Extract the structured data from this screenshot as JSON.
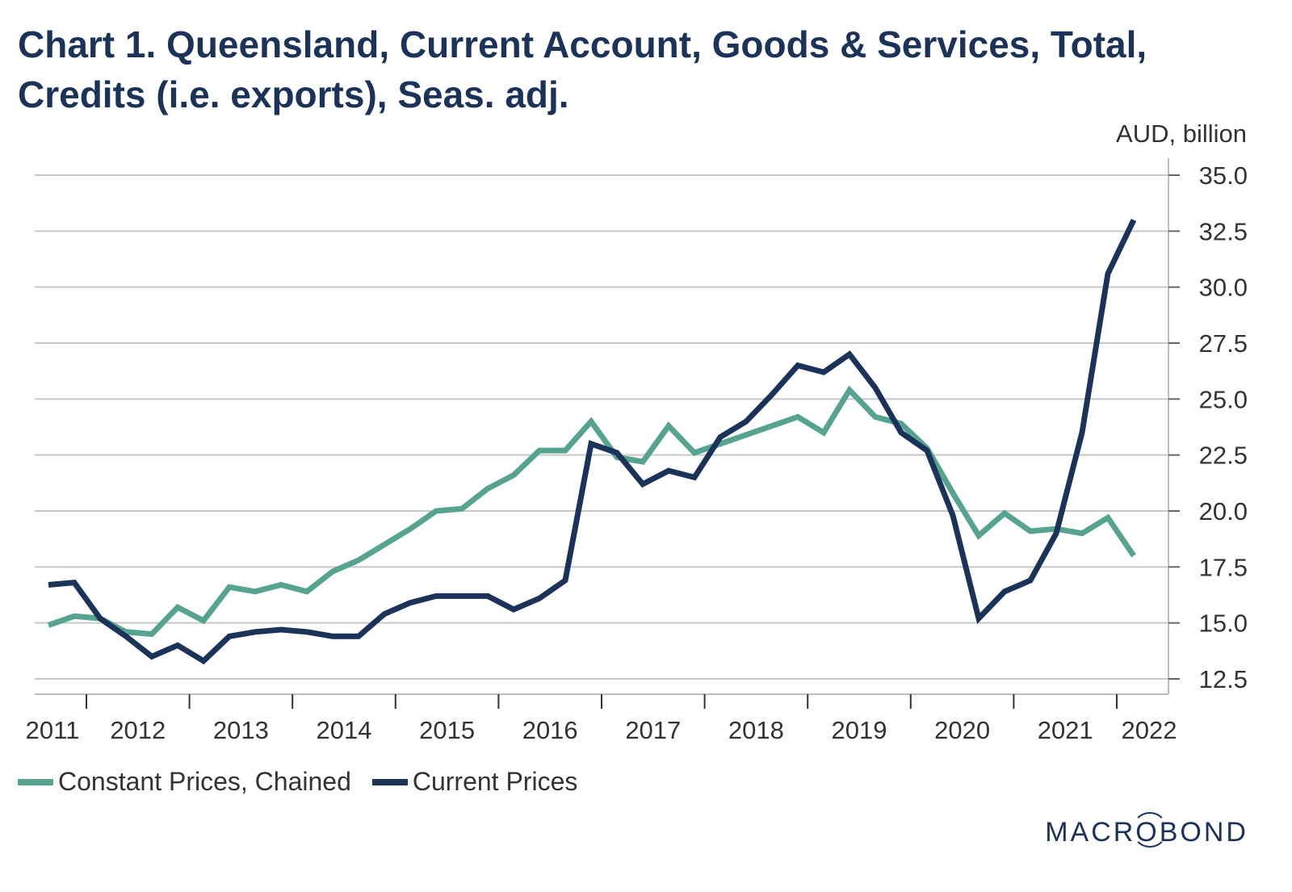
{
  "header": {
    "title": "Chart 1. Queensland, Current Account, Goods & Services, Total, Credits (i.e. exports), Seas. adj.",
    "unit_label": "AUD, billion"
  },
  "legend": {
    "items": [
      {
        "label": "Constant Prices, Chained",
        "color": "#56a38f"
      },
      {
        "label": "Current Prices",
        "color": "#1b3358"
      }
    ]
  },
  "branding": {
    "logo_text": "MACROBOND"
  },
  "chart_data": {
    "type": "line",
    "title": "Chart 1. Queensland, Current Account, Goods & Services, Total, Credits (i.e. exports), Seas. adj.",
    "xlabel": "",
    "ylabel": "AUD, billion",
    "frequency": "quarterly",
    "x_start": "2011 Q3",
    "x_end": "2022 Q1",
    "x_tick_labels": [
      "2011",
      "2012",
      "2013",
      "2014",
      "2015",
      "2016",
      "2017",
      "2018",
      "2019",
      "2020",
      "2021",
      "2022"
    ],
    "y_tick_labels": [
      "12.5",
      "15.0",
      "17.5",
      "20.0",
      "22.5",
      "25.0",
      "27.5",
      "30.0",
      "32.5",
      "35.0"
    ],
    "ylim": [
      12.5,
      35.0
    ],
    "y_axis_side": "right",
    "grid": true,
    "legend_position": "bottom-left",
    "x": [
      "2011 Q3",
      "2011 Q4",
      "2012 Q1",
      "2012 Q2",
      "2012 Q3",
      "2012 Q4",
      "2013 Q1",
      "2013 Q2",
      "2013 Q3",
      "2013 Q4",
      "2014 Q1",
      "2014 Q2",
      "2014 Q3",
      "2014 Q4",
      "2015 Q1",
      "2015 Q2",
      "2015 Q3",
      "2015 Q4",
      "2016 Q1",
      "2016 Q2",
      "2016 Q3",
      "2016 Q4",
      "2017 Q1",
      "2017 Q2",
      "2017 Q3",
      "2017 Q4",
      "2018 Q1",
      "2018 Q2",
      "2018 Q3",
      "2018 Q4",
      "2019 Q1",
      "2019 Q2",
      "2019 Q3",
      "2019 Q4",
      "2020 Q1",
      "2020 Q2",
      "2020 Q3",
      "2020 Q4",
      "2021 Q1",
      "2021 Q2",
      "2021 Q3",
      "2021 Q4",
      "2022 Q1"
    ],
    "series": [
      {
        "name": "Constant Prices, Chained",
        "color": "#56a38f",
        "values": [
          14.9,
          15.3,
          15.2,
          14.6,
          14.5,
          15.7,
          15.1,
          16.6,
          16.4,
          16.7,
          16.4,
          17.3,
          17.8,
          18.5,
          19.2,
          20.0,
          20.1,
          21.0,
          21.6,
          22.7,
          22.7,
          24.0,
          22.4,
          22.2,
          23.8,
          22.6,
          23.0,
          23.4,
          23.8,
          24.2,
          23.5,
          25.4,
          24.2,
          23.9,
          22.8,
          20.8,
          18.9,
          19.9,
          19.1,
          19.2,
          19.0,
          19.7,
          18.0
        ]
      },
      {
        "name": "Current Prices",
        "color": "#1b3358",
        "values": [
          16.7,
          16.8,
          15.2,
          14.4,
          13.5,
          14.0,
          13.3,
          14.4,
          14.6,
          14.7,
          14.6,
          14.4,
          14.4,
          15.4,
          15.9,
          16.2,
          16.2,
          16.2,
          15.6,
          16.1,
          16.9,
          23.0,
          22.6,
          21.2,
          21.8,
          21.5,
          23.3,
          24.0,
          25.2,
          26.5,
          26.2,
          27.0,
          25.5,
          23.5,
          22.7,
          19.8,
          15.2,
          16.4,
          16.9,
          19.0,
          23.5,
          30.6,
          33.0
        ]
      }
    ]
  }
}
